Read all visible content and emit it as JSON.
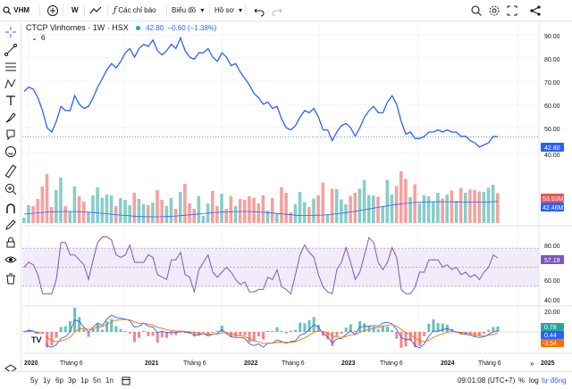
{
  "toolbar": {
    "symbol": "VHM",
    "interval": "W",
    "indicators_label": "Các chỉ báo",
    "chart_type_label": "Biểu đồ",
    "profile_label": "Hồ sơ"
  },
  "legend": {
    "title": "CTCP Vinhomes · 1W · HSX",
    "price": "42.80",
    "change": "−0.60 (−1.38%)",
    "indicator_count": "6"
  },
  "price_axis": {
    "ticks": [
      "90.00",
      "80.00",
      "70.00",
      "60.00",
      "50.00",
      "40.00"
    ],
    "current_label": "42.80"
  },
  "volume_axis": {
    "labels": [
      "53.93M",
      "42.46M"
    ]
  },
  "rsi_axis": {
    "ticks": [
      "80.00",
      "60.00",
      "40.00",
      "20.00"
    ],
    "current_label": "57.19"
  },
  "macd_axis": {
    "labels": [
      "0.78",
      "0.44",
      "-3.54"
    ]
  },
  "time_axis": {
    "labels": [
      "2020",
      "Tháng 6",
      "2021",
      "Tháng 6",
      "2022",
      "Tháng 6",
      "2023",
      "Tháng 6",
      "2024",
      "Tháng 6",
      "2025"
    ]
  },
  "bottom": {
    "ranges": [
      "5y",
      "1y",
      "6p",
      "3p",
      "1p",
      "5n",
      "1n"
    ],
    "time": "09:01:08 (UTC+7)",
    "pct": "%",
    "log": "log",
    "auto": "tự động"
  },
  "colors": {
    "line": "#2962ff",
    "up": "#26a69a",
    "down": "#ef5350",
    "rsi": "#7e57c2",
    "rsi_band": "#f1ebfa",
    "macd": "#2962ff",
    "signal": "#ff6d00",
    "accent": "#2962ff"
  },
  "chart_data": {
    "type": "line",
    "x_range": [
      "2020",
      "2025"
    ],
    "ylim": [
      30,
      95
    ],
    "y": [
      64,
      66,
      65,
      61,
      55,
      47,
      45,
      50,
      57,
      55,
      55,
      62,
      58,
      56,
      57,
      61,
      66,
      70,
      74,
      77,
      75,
      78,
      82,
      84,
      80,
      84,
      86,
      85,
      88,
      83,
      81,
      83,
      86,
      84,
      89,
      83,
      80,
      79,
      82,
      82,
      84,
      80,
      78,
      82,
      80,
      76,
      77,
      73,
      70,
      67,
      63,
      61,
      58,
      59,
      56,
      57,
      51,
      47,
      46,
      48,
      52,
      55,
      54,
      56,
      52,
      46,
      46,
      41,
      45,
      48,
      49,
      47,
      43,
      47,
      52,
      55,
      57,
      54,
      54,
      59,
      62,
      58,
      50,
      44,
      45,
      42,
      42,
      43,
      45,
      45,
      46,
      45,
      46,
      45,
      45,
      43,
      43,
      41,
      40,
      38,
      39,
      40,
      43,
      42.8
    ]
  }
}
